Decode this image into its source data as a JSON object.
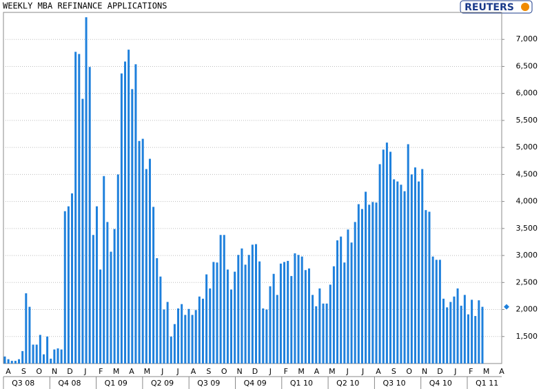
{
  "chart_data": {
    "type": "bar",
    "title": "WEEKLY MBA REFINANCE APPLICATIONS",
    "source": "REUTERS",
    "color": "#1e80dc",
    "values": [
      1130,
      1080,
      1050,
      1050,
      1080,
      1230,
      2300,
      2050,
      1350,
      1350,
      1530,
      1170,
      1500,
      1090,
      1260,
      1280,
      1260,
      3820,
      3910,
      4150,
      6770,
      6730,
      5900,
      7410,
      6490,
      3380,
      3910,
      2740,
      4470,
      3620,
      3070,
      3490,
      4500,
      6370,
      6590,
      6810,
      6080,
      6540,
      5120,
      5160,
      4600,
      4790,
      3900,
      2950,
      2610,
      2000,
      2140,
      1500,
      1730,
      2020,
      2100,
      1900,
      2010,
      1900,
      1990,
      2240,
      2200,
      2650,
      2390,
      2880,
      2870,
      3380,
      3380,
      2740,
      2370,
      2700,
      3010,
      3130,
      2830,
      3010,
      3200,
      3210,
      2890,
      2020,
      2000,
      2430,
      2660,
      2270,
      2850,
      2880,
      2900,
      2620,
      3040,
      3010,
      2980,
      2730,
      2760,
      2270,
      2060,
      2390,
      2110,
      2110,
      2460,
      2800,
      3280,
      3350,
      2870,
      3480,
      3240,
      3620,
      3950,
      3860,
      4180,
      3940,
      3990,
      3980,
      4690,
      4960,
      5090,
      4920,
      4410,
      4370,
      4310,
      4190,
      5060,
      4500,
      4630,
      4370,
      4600,
      3840,
      3810,
      2980,
      2920,
      2920,
      2200,
      2040,
      2140,
      2240,
      2390,
      2070,
      2270,
      1910,
      2180,
      1880,
      2170,
      2050
    ],
    "month_labels": [
      "A",
      "S",
      "O",
      "N",
      "D",
      "J",
      "F",
      "M",
      "A",
      "M",
      "J",
      "J",
      "A",
      "S",
      "O",
      "N",
      "D",
      "J",
      "F",
      "M",
      "A",
      "M",
      "J",
      "J",
      "A",
      "S",
      "O",
      "N",
      "D",
      "J",
      "F",
      "M",
      "A"
    ],
    "quarter_labels": [
      "Q3 08",
      "Q4 08",
      "Q1 09",
      "Q2 09",
      "Q3 09",
      "Q4 09",
      "Q1 10",
      "Q2 10",
      "Q3 10",
      "Q4 10",
      "Q1 11"
    ],
    "ylim": [
      1000,
      7500
    ],
    "yticks": [
      {
        "value": 1500,
        "label": "1,500"
      },
      {
        "value": 2000,
        "label": "2,000"
      },
      {
        "value": 2500,
        "label": "2,500"
      },
      {
        "value": 3000,
        "label": "3,000"
      },
      {
        "value": 3500,
        "label": "3,500"
      },
      {
        "value": 4000,
        "label": "4,000"
      },
      {
        "value": 4500,
        "label": "4,500"
      },
      {
        "value": 5000,
        "label": "5,000"
      },
      {
        "value": 5500,
        "label": "5,500"
      },
      {
        "value": 6000,
        "label": "6,000"
      },
      {
        "value": 6500,
        "label": "6,500"
      },
      {
        "value": 7000,
        "label": "7,000"
      }
    ],
    "grid": true
  }
}
